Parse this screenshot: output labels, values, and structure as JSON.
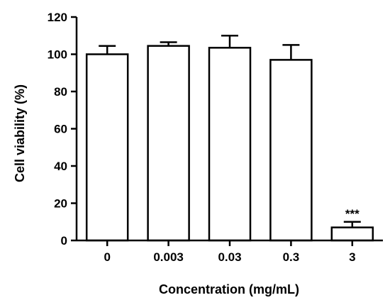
{
  "chart_data": {
    "type": "bar",
    "categories": [
      "0",
      "0.003",
      "0.03",
      "0.3",
      "3"
    ],
    "values": [
      100,
      104.5,
      103.5,
      97,
      7
    ],
    "error_upper": [
      4.5,
      2,
      6.5,
      8,
      3
    ],
    "xlabel": "Concentration (mg/mL)",
    "ylabel": "Cell viability (%)",
    "ylim": [
      0,
      120
    ],
    "yticks": [
      0,
      20,
      40,
      60,
      80,
      100,
      120
    ],
    "grid": false,
    "annotations": [
      {
        "category": "3",
        "text": "***"
      }
    ],
    "bar_fill": "#ffffff",
    "bar_stroke": "#000000"
  }
}
